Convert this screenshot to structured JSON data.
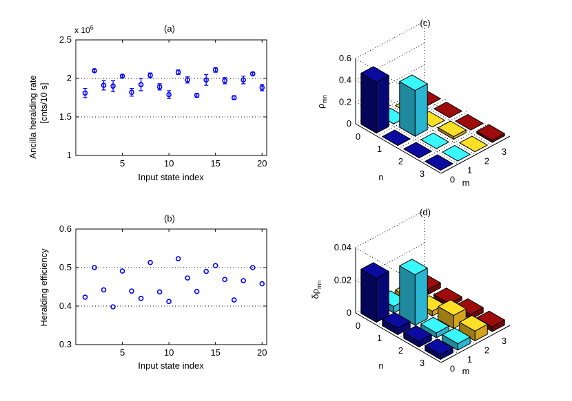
{
  "chart_data": [
    {
      "id": "a",
      "type": "scatter",
      "panel_label": "(a)",
      "xlabel": "Input state index",
      "ylabel_line1": "Ancilla heralding rate",
      "ylabel_line2": "[cnts/10 s]",
      "y_scale_label": "x 10",
      "y_scale_exp": "6",
      "xlim": [
        0,
        20.5
      ],
      "ylim": [
        1,
        2.5
      ],
      "xticks": [
        5,
        10,
        15,
        20
      ],
      "yticks": [
        1,
        1.5,
        2,
        2.5
      ],
      "grid_y": [
        1.5,
        2
      ],
      "x": [
        1,
        2,
        3,
        4,
        5,
        6,
        7,
        8,
        9,
        10,
        11,
        12,
        13,
        14,
        15,
        16,
        17,
        18,
        19,
        20
      ],
      "y": [
        1.81,
        2.1,
        1.91,
        1.9,
        2.03,
        1.82,
        1.92,
        2.04,
        1.89,
        1.79,
        2.08,
        1.98,
        1.78,
        1.98,
        2.11,
        1.97,
        1.75,
        1.98,
        2.06,
        1.88
      ],
      "yerr": [
        0.06,
        0.015,
        0.06,
        0.07,
        0.015,
        0.05,
        0.08,
        0.03,
        0.04,
        0.05,
        0.03,
        0.04,
        0.025,
        0.07,
        0.03,
        0.04,
        0.025,
        0.05,
        0.02,
        0.04
      ]
    },
    {
      "id": "b",
      "type": "scatter",
      "panel_label": "(b)",
      "xlabel": "Input state index",
      "ylabel": "Heralding efficiency",
      "xlim": [
        0,
        20.5
      ],
      "ylim": [
        0.3,
        0.6
      ],
      "xticks": [
        5,
        10,
        15,
        20
      ],
      "yticks": [
        0.3,
        0.4,
        0.5,
        0.6
      ],
      "grid_y": [
        0.4,
        0.5
      ],
      "x": [
        1,
        2,
        3,
        4,
        5,
        6,
        7,
        8,
        9,
        10,
        11,
        12,
        13,
        14,
        15,
        16,
        17,
        18,
        19,
        20
      ],
      "y": [
        0.423,
        0.5,
        0.442,
        0.398,
        0.491,
        0.439,
        0.42,
        0.513,
        0.437,
        0.412,
        0.523,
        0.473,
        0.438,
        0.49,
        0.505,
        0.469,
        0.416,
        0.466,
        0.5,
        0.458
      ]
    },
    {
      "id": "c",
      "type": "bar3d",
      "panel_label": "(c)",
      "zlabel": "ρ",
      "zlabel_sub": "mn",
      "xlabel": "m",
      "ylabel": "n",
      "m_ticks": [
        "0",
        "1",
        "2",
        "3"
      ],
      "n_ticks": [
        "0",
        "1",
        "2",
        "3"
      ],
      "zticks": [
        "0",
        "0.2",
        "0.4",
        "0.6"
      ],
      "zlim": [
        0,
        0.6
      ],
      "values": [
        [
          0.468,
          0,
          0,
          0
        ],
        [
          0,
          0.42,
          0,
          0
        ],
        [
          0,
          0,
          0.025,
          0
        ],
        [
          0,
          0,
          0,
          0.02
        ]
      ],
      "colors": [
        "#0a0a8f",
        "#33ddff",
        "#ffc822",
        "#8c0a0a"
      ]
    },
    {
      "id": "d",
      "type": "bar3d",
      "panel_label": "(d)",
      "zlabel": "δρ",
      "zlabel_sub": "mn",
      "xlabel": "m",
      "ylabel": "n",
      "m_ticks": [
        "0",
        "1",
        "2",
        "3"
      ],
      "n_ticks": [
        "0",
        "1",
        "2",
        "3"
      ],
      "zticks": [
        "0",
        "0.02",
        "0.04"
      ],
      "zlim": [
        0,
        0.04
      ],
      "values": [
        [
          0.027,
          0.004,
          0.003,
          0.003
        ],
        [
          0.004,
          0.031,
          0.003,
          0.002
        ],
        [
          0.0035,
          0.003,
          0.008,
          0.003
        ],
        [
          0.003,
          0.004,
          0.006,
          0.003
        ]
      ],
      "colors": [
        "#0a0a8f",
        "#33ddff",
        "#ffc822",
        "#8c0a0a"
      ]
    }
  ]
}
